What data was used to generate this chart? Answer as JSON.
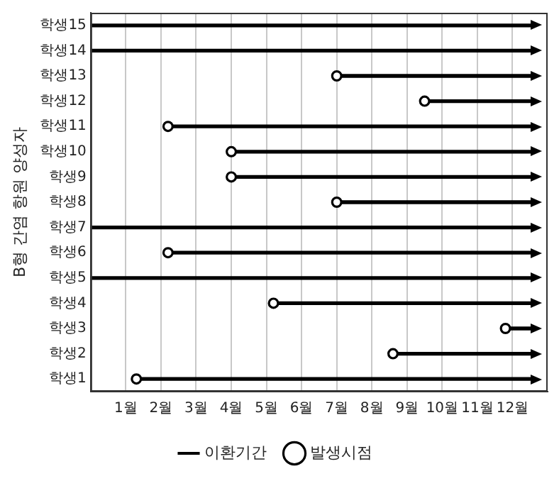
{
  "chart_data": {
    "type": "bar",
    "orientation": "horizontal",
    "ylabel": "B형 간염 항원 양성자",
    "categories": [
      "학생15",
      "학생14",
      "학생13",
      "학생12",
      "학생11",
      "학생10",
      "학생9",
      "학생8",
      "학생7",
      "학생6",
      "학생5",
      "학생4",
      "학생3",
      "학생2",
      "학생1"
    ],
    "series": [
      {
        "name": "이환기간",
        "type": "bar",
        "color": "#000000",
        "base": [
          0,
          0,
          7,
          9.5,
          2.2,
          4,
          4,
          7,
          0,
          2.2,
          0,
          5.2,
          11.8,
          8.6,
          1.3
        ],
        "values": [
          12.6,
          12.6,
          5.6,
          3.1,
          10.4,
          8.6,
          8.6,
          5.6,
          12.6,
          10.4,
          12.6,
          7.4,
          0.8,
          4,
          11.3
        ]
      },
      {
        "name": "발생시점",
        "type": "scatter",
        "color": "#000000",
        "marker": "circle",
        "values": [
          null,
          null,
          7,
          9.5,
          2.2,
          4,
          4,
          7,
          null,
          2.2,
          null,
          5.2,
          11.8,
          8.6,
          1.3
        ]
      }
    ],
    "xlim": [
      0,
      13
    ],
    "xticks": [
      {
        "value": 1,
        "label": "1월"
      },
      {
        "value": 2,
        "label": "2월"
      },
      {
        "value": 3,
        "label": "3월"
      },
      {
        "value": 4,
        "label": "4월"
      },
      {
        "value": 5,
        "label": "5월"
      },
      {
        "value": 6,
        "label": "6월"
      },
      {
        "value": 7,
        "label": "7월"
      },
      {
        "value": 8,
        "label": "8월"
      },
      {
        "value": 9,
        "label": "9월"
      },
      {
        "value": 10,
        "label": "10월"
      },
      {
        "value": 11,
        "label": "11월"
      },
      {
        "value": 12,
        "label": "12월"
      }
    ],
    "grid": "x",
    "legend": "bottom"
  }
}
